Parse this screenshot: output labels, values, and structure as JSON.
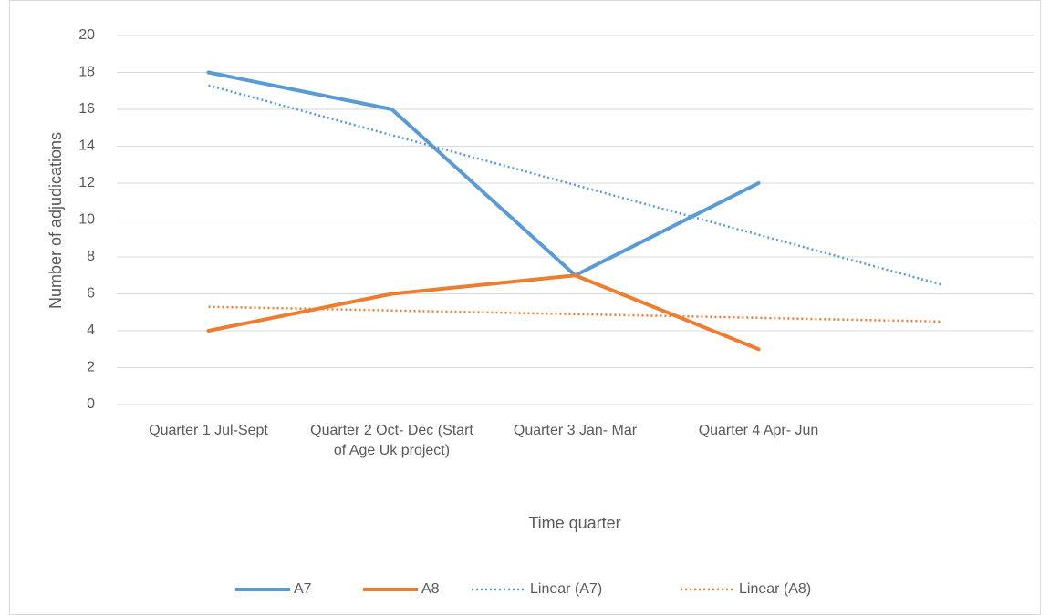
{
  "chart_data": {
    "type": "line",
    "x_label": "Time quarter",
    "y_label": "Number of adjudications",
    "categories": [
      "Quarter 1 Jul-Sept",
      "Quarter 2 Oct- Dec (Start of Age Uk project)",
      "Quarter 3 Jan- Mar",
      "Quarter 4 Apr- Jun",
      null
    ],
    "series": [
      {
        "name": "A7",
        "color": "#5b9bd5",
        "dotted": false,
        "values": [
          18,
          16,
          7,
          12,
          null
        ]
      },
      {
        "name": "A8",
        "color": "#ed7d31",
        "dotted": false,
        "values": [
          4,
          6,
          7,
          3,
          null
        ]
      },
      {
        "name": "Linear (A7)",
        "color": "#5b9bd5",
        "dotted": true,
        "values": [
          17.3,
          14.6,
          11.9,
          9.2,
          6.5
        ]
      },
      {
        "name": "Linear (A8)",
        "color": "#ed7d31",
        "dotted": true,
        "values": [
          5.3,
          5.1,
          4.9,
          4.7,
          4.5
        ]
      }
    ],
    "ylim": [
      0,
      20
    ],
    "yticks": [
      0,
      2,
      4,
      6,
      8,
      10,
      12,
      14,
      16,
      18,
      20
    ],
    "grid": true,
    "legend": "bottom"
  }
}
